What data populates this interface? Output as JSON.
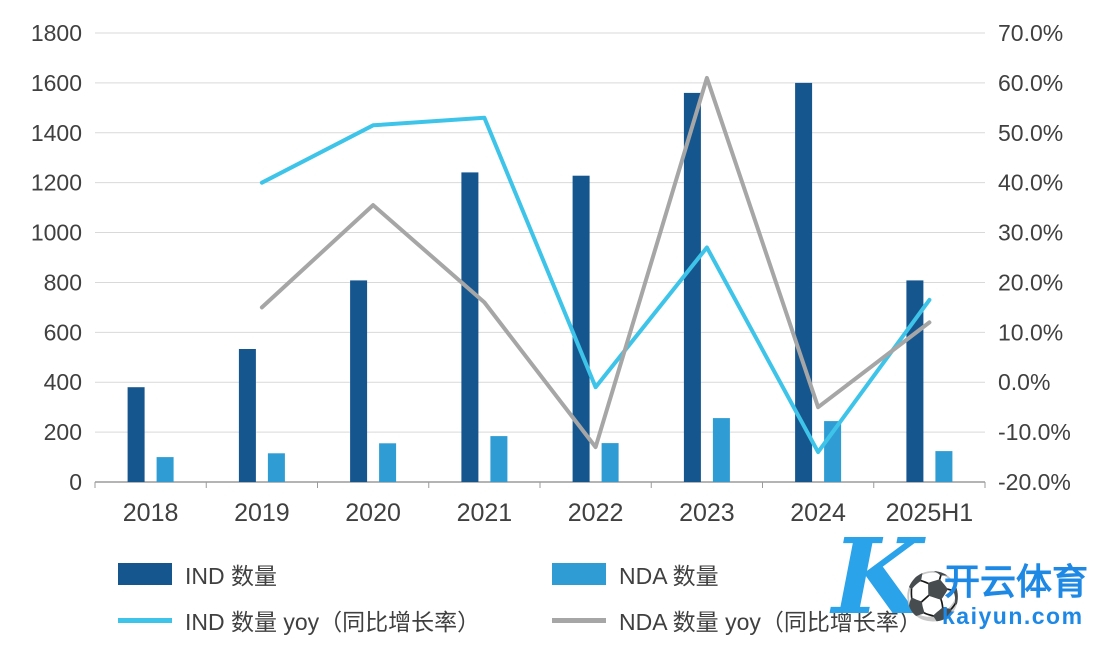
{
  "chart_data": {
    "type": "bar+line",
    "categories": [
      "2018",
      "2019",
      "2020",
      "2021",
      "2022",
      "2023",
      "2024",
      "2025H1"
    ],
    "bar_series": [
      {
        "name": "IND 数量",
        "color": "#16568f",
        "axis": "left",
        "values": [
          380,
          533,
          808,
          1241,
          1228,
          1560,
          1600,
          808
        ]
      },
      {
        "name": "NDA 数量",
        "color": "#2f9cd4",
        "axis": "left",
        "values": [
          100,
          115,
          155,
          184,
          156,
          256,
          244,
          124
        ]
      }
    ],
    "line_series": [
      {
        "name": "IND 数量 yoy（同比增长率）",
        "color": "#3ec4e8",
        "axis": "right",
        "unit": "%",
        "values": [
          null,
          40.0,
          51.5,
          53.0,
          -1.0,
          27.0,
          -14.0,
          16.5
        ]
      },
      {
        "name": "NDA 数量 yoy（同比增长率）",
        "color": "#a6a6a6",
        "axis": "right",
        "unit": "%",
        "values": [
          null,
          15.0,
          35.5,
          16.0,
          -13.0,
          61.0,
          -5.0,
          12.0
        ]
      }
    ],
    "left_axis": {
      "min": 0,
      "max": 1800,
      "step": 200,
      "tick_labels": [
        "0",
        "200",
        "400",
        "600",
        "800",
        "1000",
        "1200",
        "1400",
        "1600",
        "1800"
      ]
    },
    "right_axis": {
      "min": -20,
      "max": 70,
      "step": 10,
      "tick_labels": [
        "-20.0%",
        "-10.0%",
        "0.0%",
        "10.0%",
        "20.0%",
        "30.0%",
        "40.0%",
        "50.0%",
        "60.0%",
        "70.0%"
      ]
    },
    "grid": true,
    "legend_position": "bottom",
    "title": ""
  },
  "watermark": {
    "logo_letter": "K",
    "football_glyph": "⚽",
    "brand": "开云体育",
    "domain": "kaiyun.com",
    "color": "#1e88e5"
  }
}
